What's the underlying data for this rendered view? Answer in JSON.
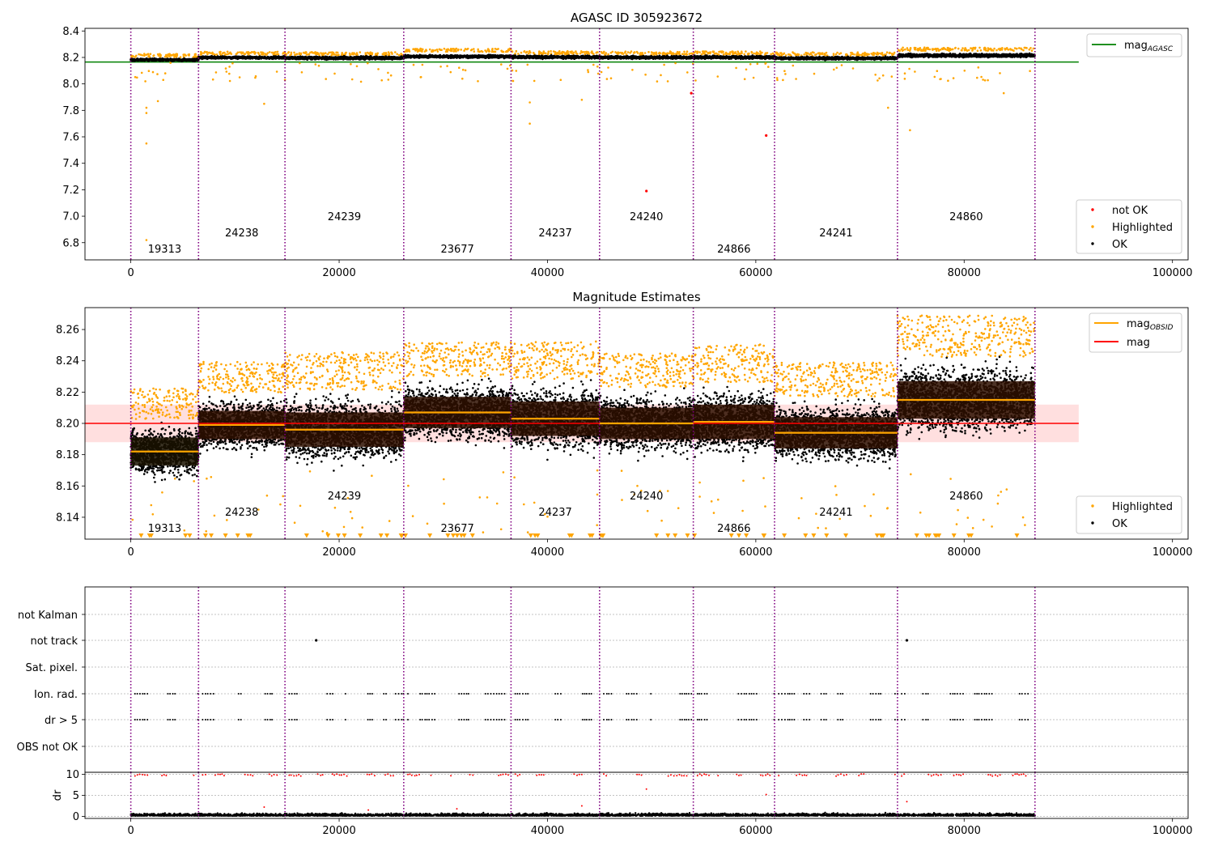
{
  "chart_data": [
    {
      "type": "scatter",
      "title": "AGASC ID 305923672",
      "xlim": [
        -4400,
        101500
      ],
      "ylim": [
        6.67,
        8.42
      ],
      "yticks": [
        6.8,
        7.0,
        7.2,
        7.4,
        7.6,
        7.8,
        8.0,
        8.2,
        8.4
      ],
      "xticks": [
        0,
        20000,
        40000,
        60000,
        80000,
        100000
      ],
      "legend_lines": [
        {
          "label": "mag",
          "sub": "AGASC",
          "color": "#008000"
        }
      ],
      "legend_points": [
        {
          "label": "not OK",
          "color": "#ff0000"
        },
        {
          "label": "Highlighted",
          "color": "#ffa500"
        },
        {
          "label": "OK",
          "color": "#000000"
        }
      ],
      "agasc_mag": 8.165,
      "agasc_xrange": [
        -4400,
        91000
      ],
      "not_ok_points": [
        [
          49500,
          7.19
        ],
        [
          61000,
          7.61
        ],
        [
          53800,
          7.93
        ]
      ],
      "highlight_outliers": [
        [
          1400,
          8.02
        ],
        [
          1500,
          7.82
        ],
        [
          1500,
          7.78
        ],
        [
          1500,
          7.55
        ],
        [
          1500,
          6.82
        ],
        [
          2600,
          7.87
        ],
        [
          12800,
          7.85
        ],
        [
          14800,
          8.03
        ],
        [
          38300,
          7.86
        ],
        [
          38300,
          7.7
        ],
        [
          43300,
          7.88
        ],
        [
          72700,
          7.82
        ],
        [
          74800,
          7.65
        ],
        [
          83800,
          7.93
        ]
      ]
    },
    {
      "type": "scatter",
      "title": "Magnitude Estimates",
      "xlim": [
        -4400,
        101500
      ],
      "ylim": [
        8.126,
        8.274
      ],
      "yticks": [
        8.14,
        8.16,
        8.18,
        8.2,
        8.22,
        8.24,
        8.26
      ],
      "xticks": [
        0,
        20000,
        40000,
        60000,
        80000,
        100000
      ],
      "legend_lines": [
        {
          "label": "mag",
          "sub": "OBSID",
          "color": "#ffa500"
        },
        {
          "label": "mag",
          "sub": "",
          "color": "#ff0000"
        }
      ],
      "legend_points": [
        {
          "label": "Highlighted",
          "color": "#ffa500"
        },
        {
          "label": "OK",
          "color": "#000000"
        }
      ],
      "mag": 8.2,
      "mag_band": [
        8.188,
        8.212
      ],
      "mag_xrange": [
        -4400,
        91000
      ]
    },
    {
      "type": "scatter",
      "title": "",
      "xlim": [
        -4400,
        101500
      ],
      "categories": [
        "OBS not OK",
        "dr > 5",
        "Ion. rad.",
        "Sat. pixel.",
        "not track",
        "not Kalman"
      ],
      "not_track_x": [
        17800,
        74500
      ],
      "dr_panel": {
        "ylabel": "dr",
        "ylim": [
          -0.5,
          10.5
        ],
        "yticks": [
          0,
          5,
          10
        ],
        "xticks": [
          0,
          20000,
          40000,
          60000,
          80000,
          100000
        ]
      },
      "dr_outliers": [
        [
          49500,
          6.5
        ],
        [
          61000,
          5.2
        ],
        [
          74500,
          3.5
        ],
        [
          12800,
          2.2
        ],
        [
          43300,
          2.5
        ],
        [
          31300,
          1.8
        ],
        [
          22800,
          1.5
        ]
      ]
    }
  ],
  "observations": [
    {
      "obsid": "19313",
      "start": 0,
      "end": 6500,
      "mag": 8.182,
      "std": 0.009,
      "color": "#1a1200",
      "label_row": 0
    },
    {
      "obsid": "24238",
      "start": 6500,
      "end": 14800,
      "mag": 8.199,
      "std": 0.009,
      "color": "#2e0f00",
      "label_row": 1
    },
    {
      "obsid": "24239",
      "start": 14800,
      "end": 26200,
      "mag": 8.196,
      "std": 0.011,
      "color": "#2e0f00",
      "label_row": 2
    },
    {
      "obsid": "23677",
      "start": 26200,
      "end": 36500,
      "mag": 8.207,
      "std": 0.01,
      "color": "#2e0f00",
      "label_row": 0
    },
    {
      "obsid": "24237",
      "start": 36500,
      "end": 45000,
      "mag": 8.203,
      "std": 0.011,
      "color": "#2e0f00",
      "label_row": 1
    },
    {
      "obsid": "24240",
      "start": 45000,
      "end": 54000,
      "mag": 8.2,
      "std": 0.01,
      "color": "#2e0f00",
      "label_row": 2
    },
    {
      "obsid": "24866",
      "start": 54000,
      "end": 61800,
      "mag": 8.201,
      "std": 0.011,
      "color": "#2e0f00",
      "label_row": 0
    },
    {
      "obsid": "24241",
      "start": 61800,
      "end": 73600,
      "mag": 8.194,
      "std": 0.01,
      "color": "#2e0f00",
      "label_row": 1
    },
    {
      "obsid": "24860",
      "start": 73600,
      "end": 86800,
      "mag": 8.215,
      "std": 0.012,
      "color": "#2e0f00",
      "label_row": 2
    }
  ]
}
